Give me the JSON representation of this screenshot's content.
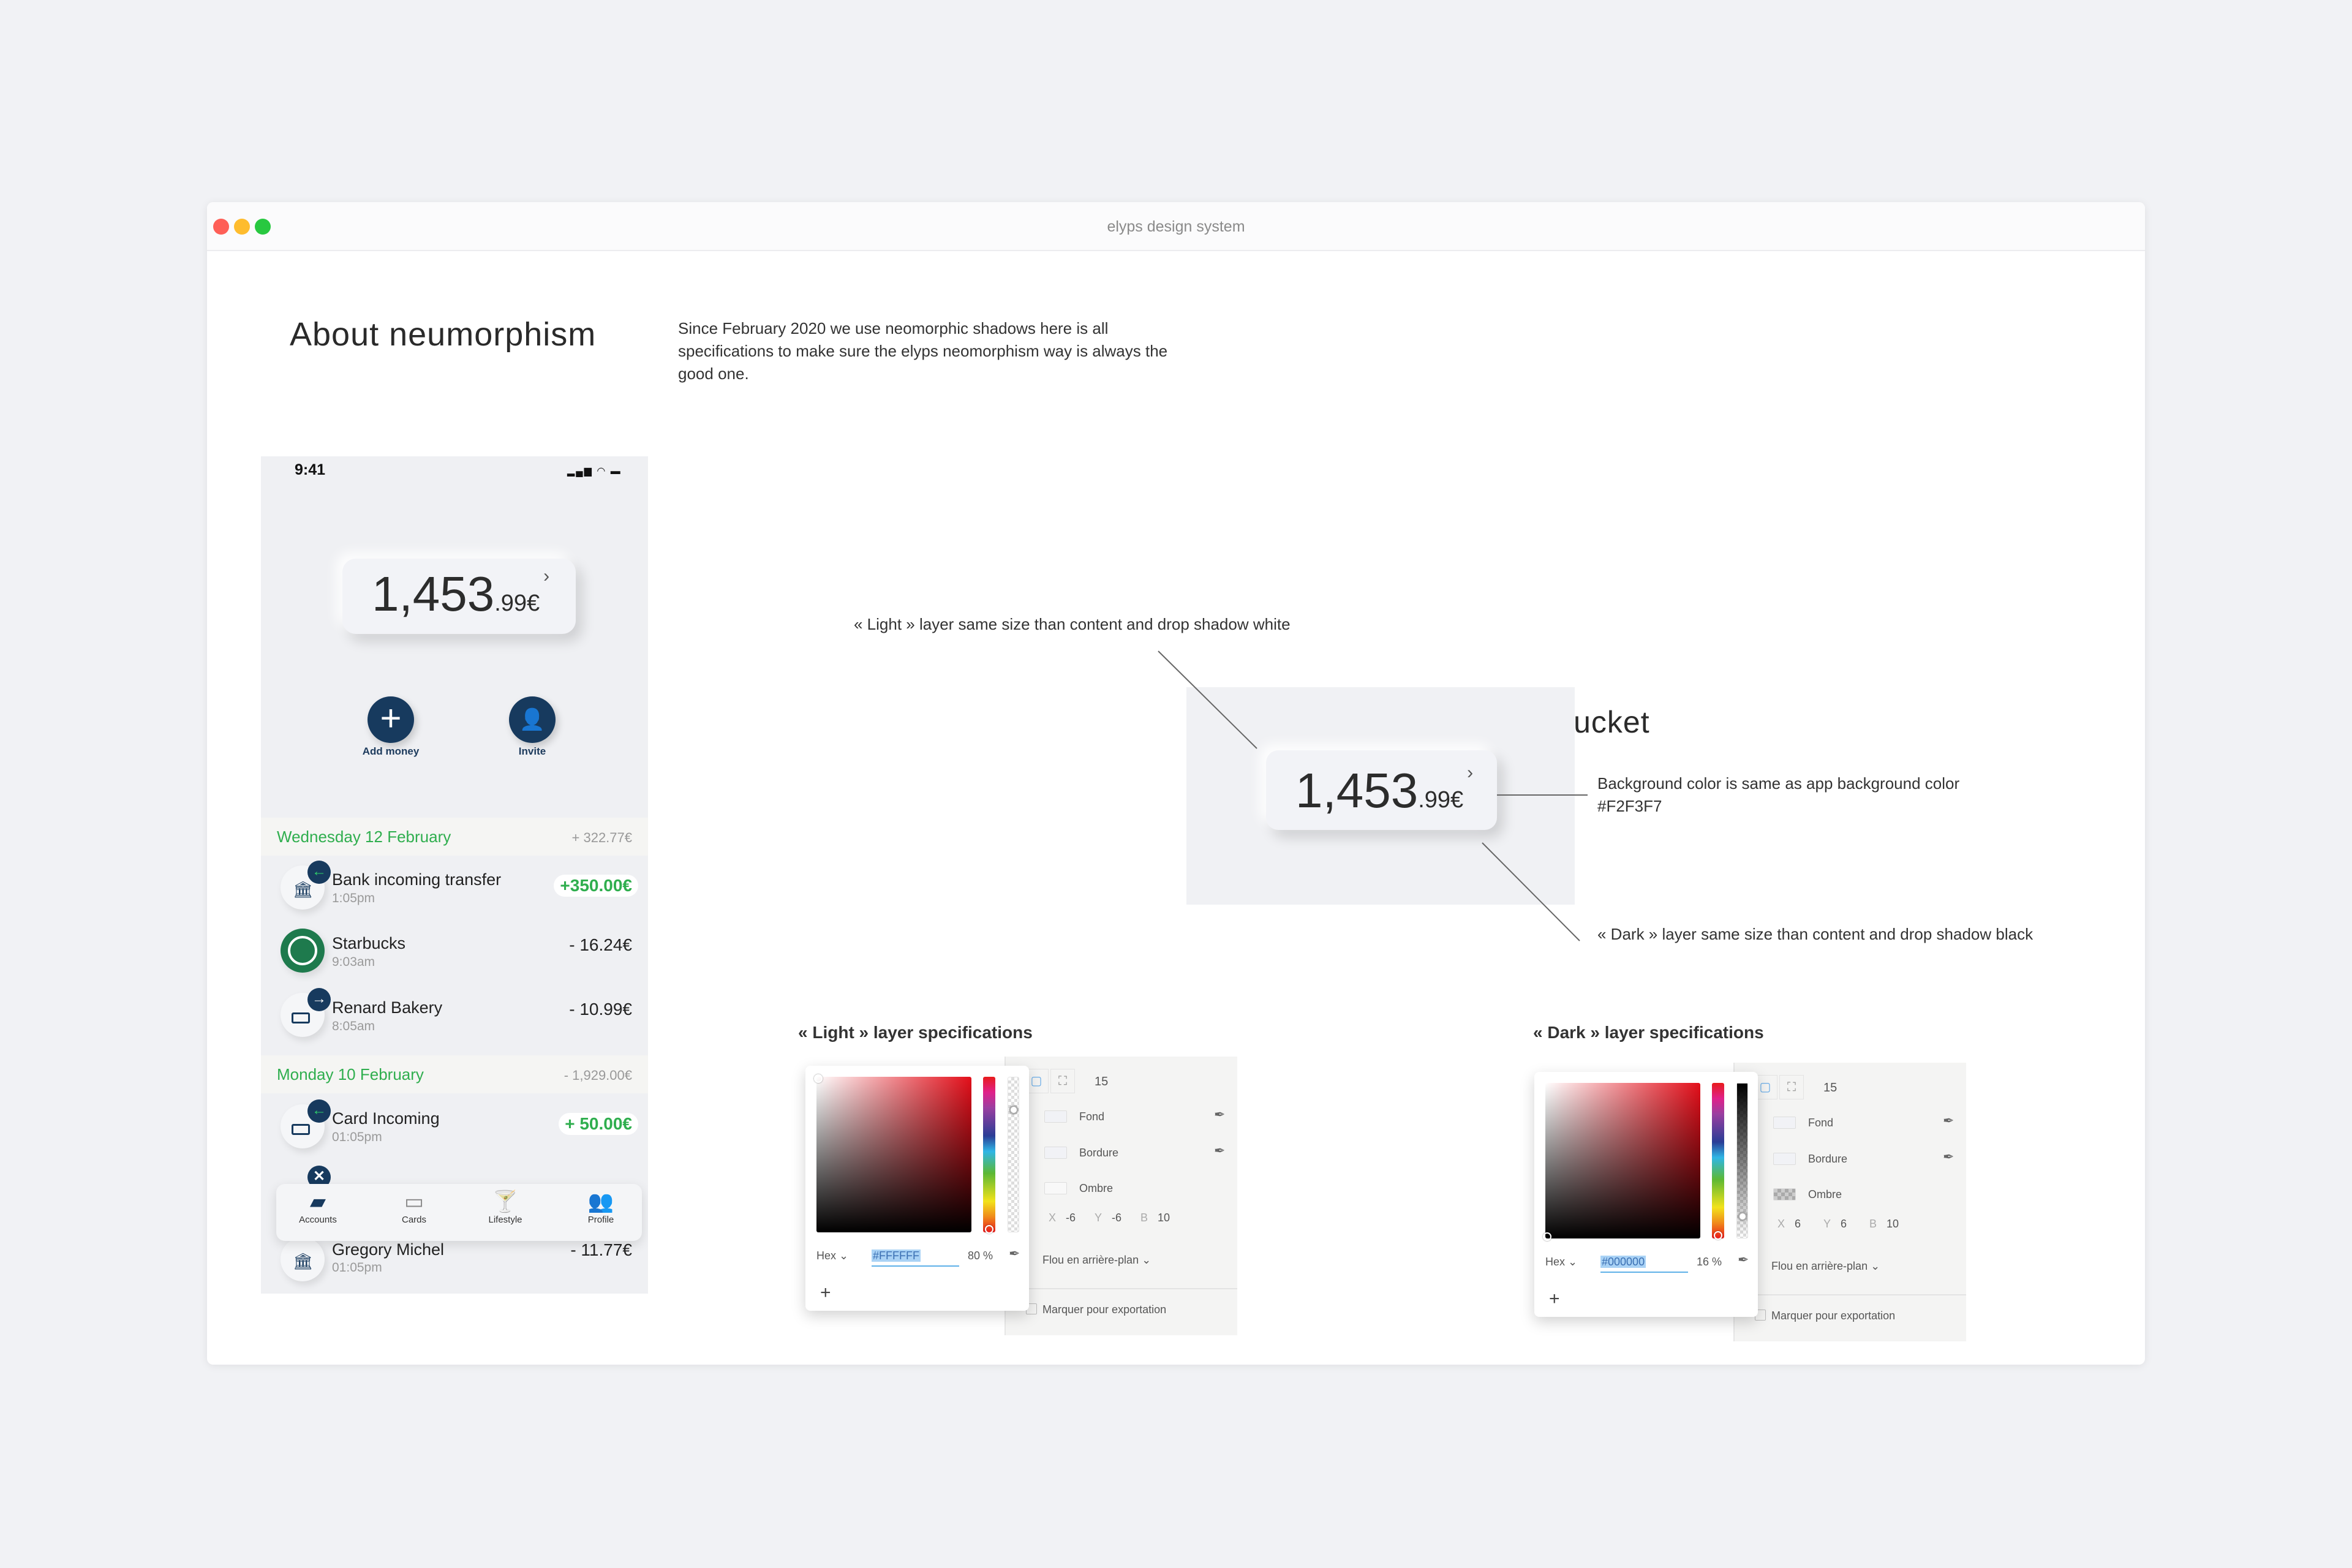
{
  "window": {
    "title": "elyps design system",
    "traffic_lights": [
      "#fe5f57",
      "#febc2e",
      "#28c840"
    ]
  },
  "about": {
    "heading": "About neumorphism",
    "description": "Since February 2020 we use neomorphic shadows here is all specifications to make sure the elyps neomorphism way is always the good one."
  },
  "phone": {
    "time": "9:41",
    "balance": {
      "integer": "1,453",
      "decimal": ".99€",
      "chevron": "›"
    },
    "actions": [
      {
        "label": "Add money",
        "icon": "plus-icon"
      },
      {
        "label": "Invite",
        "icon": "add-user-icon"
      }
    ],
    "sections": [
      {
        "date": "Wednesday 12 February",
        "total": "+ 322.77€"
      },
      {
        "date": "Monday 10 February",
        "total": "- 1,929.00€"
      }
    ],
    "transactions": [
      {
        "name": "Bank incoming transfer",
        "time": "1:05pm",
        "amount": "+350.00€",
        "icon": "bank-icon",
        "badge": "arrow-left-icon"
      },
      {
        "name": "Starbucks",
        "time": "9:03am",
        "amount": "- 16.24€",
        "icon": "starbucks-logo"
      },
      {
        "name": "Renard Bakery",
        "time": "8:05am",
        "amount": "- 10.99€",
        "icon": "card-icon",
        "badge": "arrow-right-icon"
      },
      {
        "name": "Card Incoming",
        "time": "01:05pm",
        "amount": "+ 50.00€",
        "icon": "card-icon",
        "badge": "arrow-left-icon"
      },
      {
        "name": "Gregory Michel",
        "time": "01:05pm",
        "amount": "- 11.77€",
        "icon": "bank-icon"
      }
    ],
    "tabs": [
      {
        "label": "Accounts",
        "icon": "wallet-icon",
        "active": true
      },
      {
        "label": "Cards",
        "icon": "card-icon"
      },
      {
        "label": "Lifestyle",
        "icon": "cocktail-icon"
      },
      {
        "label": "Profile",
        "icon": "users-icon"
      }
    ],
    "colors": {
      "green": "#2fae4e",
      "navy": "#173a5e"
    }
  },
  "anatomy": {
    "title": "Anatomy of neumorphic bucket",
    "light_note": "« Light » layer same size than content and drop shadow white",
    "bg_note": "Background color is same as app background color",
    "bg_color": "#F2F3F7",
    "dark_note": "« Dark » layer same size than content and drop shadow black",
    "bucket": {
      "integer": "1,453",
      "decimal": ".99€",
      "chevron": "›"
    }
  },
  "light_spec": {
    "heading": "« Light » layer  specifications",
    "radius": "15",
    "fill_label": "Fond",
    "border_label": "Bordure",
    "shadow_label": "Ombre",
    "x_label": "X",
    "x": "-6",
    "y_label": "Y",
    "y": "-6",
    "b_label": "B",
    "blur": "10",
    "background_blur": "Flou en arrière-plan",
    "export": "Marquer pour exportation",
    "mode": "Hex",
    "hex": "#FFFFFF",
    "opacity": "80 %",
    "add": "+"
  },
  "dark_spec": {
    "heading": "« Dark » layer  specifications",
    "radius": "15",
    "fill_label": "Fond",
    "border_label": "Bordure",
    "shadow_label": "Ombre",
    "x_label": "X",
    "x": "6",
    "y_label": "Y",
    "y": "6",
    "b_label": "B",
    "blur": "10",
    "background_blur": "Flou en arrière-plan",
    "export": "Marquer pour exportation",
    "mode": "Hex",
    "hex": "#000000",
    "opacity": "16 %",
    "add": "+"
  }
}
